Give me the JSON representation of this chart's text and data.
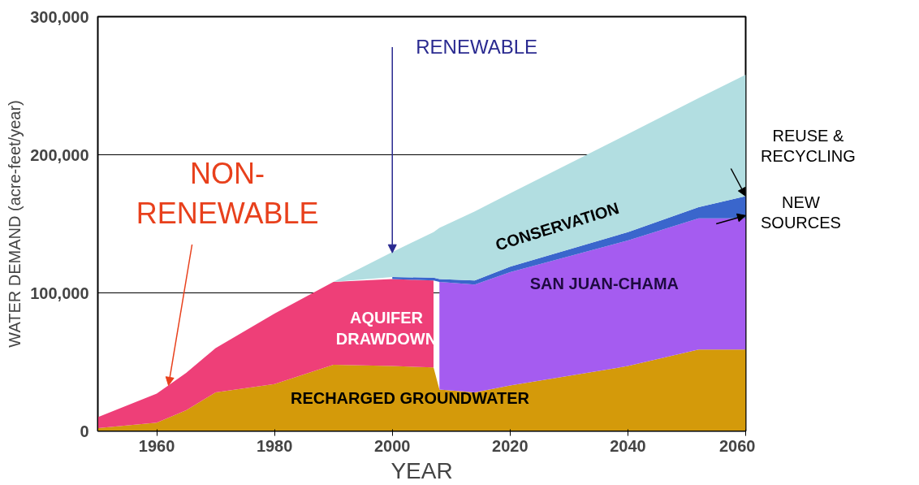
{
  "chart_data": {
    "type": "area",
    "stacked": true,
    "xlabel": "YEAR",
    "ylabel": "WATER DEMAND (acre-feet/year)",
    "x": [
      1950,
      1960,
      1965,
      1970,
      1980,
      1990,
      2000,
      2007,
      2008,
      2014,
      2020,
      2040,
      2052,
      2060
    ],
    "series": [
      {
        "name": "RECHARGED GROUNDWATER",
        "color": "#d49a0a",
        "values": [
          2000,
          6000,
          15000,
          28000,
          34000,
          48000,
          47000,
          46000,
          30000,
          28000,
          33000,
          47000,
          59000,
          59000
        ]
      },
      {
        "name": "AQUIFER\nDRAWDOWN",
        "color": "#ee3f78",
        "values": [
          8000,
          21000,
          27000,
          32000,
          51000,
          60000,
          63000,
          63000,
          null,
          null,
          null,
          null,
          null,
          null
        ]
      },
      {
        "name": "SAN JUAN-CHAMA",
        "color": "#a55cf0",
        "values": [
          null,
          null,
          null,
          null,
          null,
          null,
          null,
          null,
          78000,
          78000,
          82000,
          91000,
          95000,
          95000
        ]
      },
      {
        "color": "#3a66cc",
        "values": [
          null,
          null,
          null,
          null,
          null,
          null,
          1500,
          2000,
          2000,
          3000,
          4000,
          6000,
          8000,
          16000
        ]
      },
      {
        "name": "CONSERVATION",
        "color": "#b2dee1",
        "values": [
          null,
          null,
          null,
          null,
          null,
          0,
          18000,
          33000,
          37000,
          50000,
          53000,
          71000,
          79000,
          88000
        ]
      }
    ],
    "xlim": [
      1950,
      2060
    ],
    "ylim": [
      0,
      300000
    ],
    "xticks": [
      1960,
      1980,
      2000,
      2020,
      2040,
      2060
    ],
    "yticks": [
      0,
      {
        "value": 100000,
        "label": "100,000"
      },
      {
        "value": 200000,
        "label": "200,000"
      },
      {
        "value": 300000,
        "label": "300,000"
      }
    ],
    "grid": "y",
    "annotations": [
      {
        "text": "NON-\nRENEWABLE",
        "x": 1962,
        "y": 33000
      },
      {
        "text": "RENEWABLE",
        "x": 2000,
        "y": 129000
      },
      {
        "text": "REUSE &\nRECYCLING",
        "x": 2060,
        "y": 170000
      },
      {
        "text": "NEW\nSOURCES",
        "x": 2060,
        "y": 156000
      }
    ]
  }
}
